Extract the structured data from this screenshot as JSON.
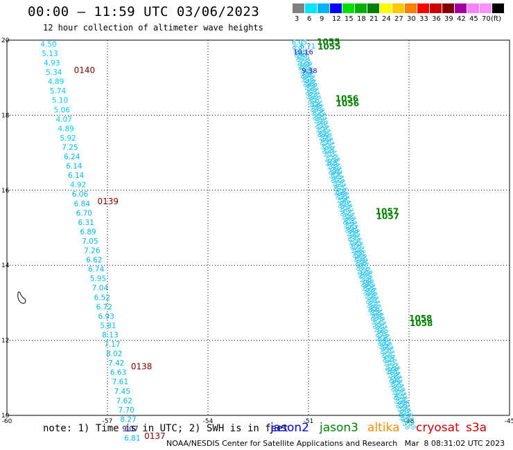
{
  "header": {
    "title": "00:00 – 11:59 UTC 03/06/2023",
    "subtitle": "12 hour collection of altimeter wave heights"
  },
  "color_legend": {
    "labels": [
      "3",
      "6",
      "9",
      "12",
      "15",
      "18",
      "21",
      "24",
      "27",
      "30",
      "33",
      "36",
      "39",
      "42",
      "45",
      "70",
      "(ft)"
    ],
    "colors": [
      "#808080",
      "#00e5ff",
      "#00b3ff",
      "#0000ff",
      "#00e000",
      "#00b000",
      "#008000",
      "#ffff00",
      "#ffc800",
      "#ff8000",
      "#ff0000",
      "#c80000",
      "#800000",
      "#a000a0",
      "#ff80ff",
      "#ff90ff",
      "#000000"
    ]
  },
  "footer": {
    "note": "note: 1) Time is in UTC; 2) SWH is in feet",
    "satellites": [
      {
        "name": "jason2",
        "color": "#0000ff"
      },
      {
        "name": "jason3",
        "color": "#008000"
      },
      {
        "name": "altika",
        "color": "#ff8c00"
      },
      {
        "name": "cryosat",
        "color": "#cc0000"
      },
      {
        "name": "s3a",
        "color": "#cc0000"
      }
    ],
    "credit": "NOAA/NESDIS Center for Satellite Applications and Research   Mar  8 08:31:02 UTC 2023"
  },
  "chart_data": {
    "type": "scatter",
    "title": "00:00 – 11:59 UTC 03/06/2023",
    "xlim": [
      -60,
      -45
    ],
    "ylim": [
      10,
      20
    ],
    "x_ticks": [
      "-60",
      "-57",
      "-54",
      "-51",
      "-48",
      "-45"
    ],
    "y_ticks": [
      "10",
      "12",
      "14",
      "16",
      "18",
      "20"
    ],
    "grid": true,
    "track_left": {
      "points": [
        {
          "x": -59.0,
          "y": 19.9,
          "swh": "4.50"
        },
        {
          "x": -58.96,
          "y": 19.65,
          "swh": "5.13"
        },
        {
          "x": -58.9,
          "y": 19.4,
          "swh": "4.93"
        },
        {
          "x": -58.84,
          "y": 19.15,
          "swh": "5.34"
        },
        {
          "x": -58.78,
          "y": 18.9,
          "swh": "4.89"
        },
        {
          "x": -58.72,
          "y": 18.65,
          "swh": "5.74"
        },
        {
          "x": -58.66,
          "y": 18.4,
          "swh": "5.10"
        },
        {
          "x": -58.6,
          "y": 18.15,
          "swh": "5.06"
        },
        {
          "x": -58.54,
          "y": 17.9,
          "swh": "4.07"
        },
        {
          "x": -58.48,
          "y": 17.65,
          "swh": "4.89"
        },
        {
          "x": -58.42,
          "y": 17.4,
          "swh": "5.92"
        },
        {
          "x": -58.36,
          "y": 17.15,
          "swh": "7.25"
        },
        {
          "x": -58.3,
          "y": 16.9,
          "swh": "6.24"
        },
        {
          "x": -58.24,
          "y": 16.65,
          "swh": "6.14"
        },
        {
          "x": -58.18,
          "y": 16.4,
          "swh": "6.14"
        },
        {
          "x": -58.12,
          "y": 16.15,
          "swh": "4.92"
        },
        {
          "x": -58.06,
          "y": 15.9,
          "swh": "6.06"
        },
        {
          "x": -58.0,
          "y": 15.65,
          "swh": "6.84"
        },
        {
          "x": -57.94,
          "y": 15.4,
          "swh": "6.70"
        },
        {
          "x": -57.88,
          "y": 15.15,
          "swh": "6.31"
        },
        {
          "x": -57.82,
          "y": 14.9,
          "swh": "6.89"
        },
        {
          "x": -57.76,
          "y": 14.65,
          "swh": "7.05"
        },
        {
          "x": -57.7,
          "y": 14.4,
          "swh": "7.26"
        },
        {
          "x": -57.64,
          "y": 14.15,
          "swh": "6.62"
        },
        {
          "x": -57.58,
          "y": 13.9,
          "swh": "6.74"
        },
        {
          "x": -57.52,
          "y": 13.65,
          "swh": "5.95"
        },
        {
          "x": -57.46,
          "y": 13.4,
          "swh": "7.04"
        },
        {
          "x": -57.4,
          "y": 13.15,
          "swh": "6.52"
        },
        {
          "x": -57.34,
          "y": 12.9,
          "swh": "6.72"
        },
        {
          "x": -57.28,
          "y": 12.65,
          "swh": "6.93"
        },
        {
          "x": -57.22,
          "y": 12.4,
          "swh": "5.81"
        },
        {
          "x": -57.16,
          "y": 12.15,
          "swh": "8.13"
        },
        {
          "x": -57.1,
          "y": 11.9,
          "swh": "7.17"
        },
        {
          "x": -57.04,
          "y": 11.65,
          "swh": "8.02"
        },
        {
          "x": -56.98,
          "y": 11.4,
          "swh": "7.42"
        },
        {
          "x": -56.92,
          "y": 11.15,
          "swh": "6.63"
        },
        {
          "x": -56.86,
          "y": 10.9,
          "swh": "7.61"
        },
        {
          "x": -56.8,
          "y": 10.65,
          "swh": "7.45"
        },
        {
          "x": -56.74,
          "y": 10.4,
          "swh": "7.62"
        },
        {
          "x": -56.68,
          "y": 10.15,
          "swh": "7.70"
        },
        {
          "x": -56.62,
          "y": 9.9,
          "swh": "8.27"
        },
        {
          "x": -56.56,
          "y": 9.65,
          "swh": "9.07"
        },
        {
          "x": -56.5,
          "y": 9.4,
          "swh": "6.81"
        }
      ],
      "time_labels": [
        {
          "x": -58.0,
          "y": 19.2,
          "text": "0140"
        },
        {
          "x": -57.3,
          "y": 15.7,
          "text": "0139"
        },
        {
          "x": -56.3,
          "y": 11.3,
          "text": "0138"
        },
        {
          "x": -55.9,
          "y": 9.45,
          "text": "0137"
        }
      ]
    },
    "track_right": {
      "points": [
        {
          "x": -51.5,
          "y": 19.95,
          "swh": "6.05"
        },
        {
          "x": -51.45,
          "y": 19.7,
          "swh": "10.16"
        },
        {
          "x": -51.2,
          "y": 19.2,
          "swh": "9.38"
        }
      ],
      "extra_labels": [
        {
          "x": -51.25,
          "y": 19.85,
          "text": "6.71"
        }
      ],
      "time_labels": [
        {
          "x": -50.75,
          "y": 19.92,
          "text": "1055"
        },
        {
          "x": -50.2,
          "y": 18.4,
          "text": "1056"
        },
        {
          "x": -49.0,
          "y": 15.4,
          "text": "1057"
        },
        {
          "x": -48.0,
          "y": 12.55,
          "text": "1058"
        }
      ],
      "swh_range": [
        6.05,
        10.16
      ]
    }
  }
}
